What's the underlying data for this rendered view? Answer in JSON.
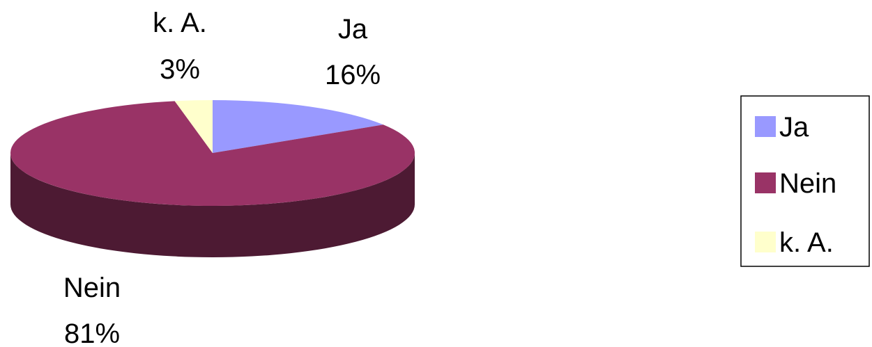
{
  "chart_data": {
    "type": "pie",
    "title": "",
    "slices": [
      {
        "name": "Ja",
        "value": 16,
        "label": "16%",
        "color": "#9999ff"
      },
      {
        "name": "Nein",
        "value": 81,
        "label": "81%",
        "color": "#993366"
      },
      {
        "name": "k. A.",
        "value": 3,
        "label": "3%",
        "color": "#ffffcc"
      }
    ],
    "legend": {
      "position": "right",
      "items": [
        "Ja",
        "Nein",
        "k. A."
      ]
    },
    "three_d": true,
    "side_colors": {
      "Nein": "#4d1a33"
    }
  }
}
